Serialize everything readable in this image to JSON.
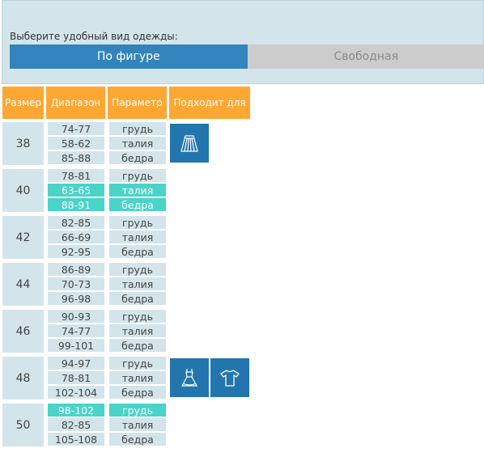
{
  "selector": {
    "prompt": "Выберите удобный вид одежды:",
    "options": [
      "По фигуре",
      "Свободная"
    ],
    "active_index": 0
  },
  "table": {
    "headers": [
      "Размер",
      "Диапазон",
      "Параметр",
      "Подходит для"
    ],
    "param_labels": [
      "грудь",
      "талия",
      "бедра"
    ],
    "rows": [
      {
        "size": "38",
        "ranges": [
          "74-77",
          "58-62",
          "85-88"
        ],
        "highlight": []
      },
      {
        "size": "40",
        "ranges": [
          "78-81",
          "63-65",
          "88-91"
        ],
        "highlight": [
          1,
          2
        ]
      },
      {
        "size": "42",
        "ranges": [
          "82-85",
          "66-69",
          "92-95"
        ],
        "highlight": []
      },
      {
        "size": "44",
        "ranges": [
          "86-89",
          "70-73",
          "96-98"
        ],
        "highlight": []
      },
      {
        "size": "46",
        "ranges": [
          "90-93",
          "74-77",
          "99-101"
        ],
        "highlight": []
      },
      {
        "size": "48",
        "ranges": [
          "94-97",
          "78-81",
          "102-104"
        ],
        "highlight": []
      },
      {
        "size": "50",
        "ranges": [
          "98-102",
          "82-85",
          "105-108"
        ],
        "highlight": [
          0
        ]
      }
    ],
    "suitable_icons": {
      "row_38": [
        "skirt-icon"
      ],
      "row_48": [
        "dress-icon",
        "tshirt-icon"
      ]
    }
  },
  "colors": {
    "panel_bg": "#d3e5ea",
    "active_tab": "#3384bc",
    "inactive_tab": "#cccccc",
    "header_bg": "#ffa733",
    "highlight": "#4ad3c9",
    "icon_bg": "#2375ad"
  }
}
